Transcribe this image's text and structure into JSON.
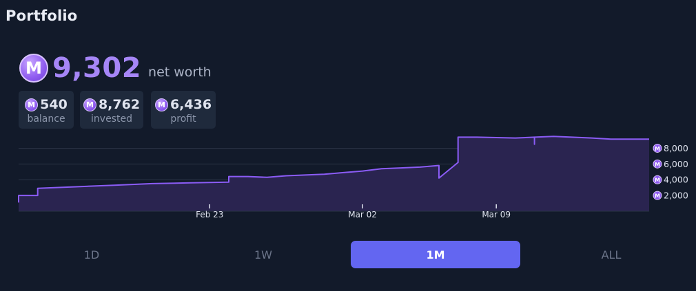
{
  "page": {
    "title": "Portfolio"
  },
  "net_worth": {
    "value": "9,302",
    "label": "net worth",
    "icon": "mana-coin-icon"
  },
  "stats": [
    {
      "value": "540",
      "label": "balance"
    },
    {
      "value": "8,762",
      "label": "invested"
    },
    {
      "value": "6,436",
      "label": "profit"
    }
  ],
  "currency_symbol": "M",
  "range_tabs": [
    {
      "label": "1D",
      "active": false
    },
    {
      "label": "1W",
      "active": false
    },
    {
      "label": "1M",
      "active": true
    },
    {
      "label": "ALL",
      "active": false
    }
  ],
  "colors": {
    "accent": "#6366f1",
    "line": "#8b5cf6",
    "area": "#2a2450",
    "background": "#121a2a",
    "net_worth": "#a686f7"
  },
  "chart_data": {
    "type": "area",
    "x_axis_type": "date",
    "x_ticks": [
      "Feb 23",
      "Mar 02",
      "Mar 09"
    ],
    "x_tick_dates": [
      "2024-02-23",
      "2024-03-02",
      "2024-03-09"
    ],
    "y_ticks": [
      "2,000",
      "4,000",
      "6,000",
      "8,000"
    ],
    "y_tick_values": [
      2000,
      4000,
      6000,
      8000
    ],
    "ylim": [
      0,
      9700
    ],
    "xlim": [
      "2024-02-13",
      "2024-03-17"
    ],
    "grid": true,
    "y_axis_position": "right",
    "series": [
      {
        "points": [
          [
            "2024-02-13",
            1100
          ],
          [
            "2024-02-13",
            2000
          ],
          [
            "2024-02-14",
            2000
          ],
          [
            "2024-02-14",
            2900
          ],
          [
            "2024-02-16",
            3100
          ],
          [
            "2024-02-18",
            3300
          ],
          [
            "2024-02-20",
            3500
          ],
          [
            "2024-02-22",
            3600
          ],
          [
            "2024-02-23",
            3650
          ],
          [
            "2024-02-24",
            3700
          ],
          [
            "2024-02-24",
            4400
          ],
          [
            "2024-02-25",
            4400
          ],
          [
            "2024-02-26",
            4300
          ],
          [
            "2024-02-27",
            4500
          ],
          [
            "2024-02-29",
            4700
          ],
          [
            "2024-03-01",
            4900
          ],
          [
            "2024-03-02",
            5100
          ],
          [
            "2024-03-03",
            5400
          ],
          [
            "2024-03-04",
            5500
          ],
          [
            "2024-03-05",
            5600
          ],
          [
            "2024-03-06",
            5800
          ],
          [
            "2024-03-06",
            4200
          ],
          [
            "2024-03-07",
            6200
          ],
          [
            "2024-03-07",
            9400
          ],
          [
            "2024-03-08",
            9400
          ],
          [
            "2024-03-09",
            9350
          ],
          [
            "2024-03-10",
            9300
          ],
          [
            "2024-03-11",
            9400
          ],
          [
            "2024-03-11",
            8500
          ],
          [
            "2024-03-11",
            9400
          ],
          [
            "2024-03-12",
            9500
          ],
          [
            "2024-03-14",
            9300
          ],
          [
            "2024-03-15",
            9150
          ],
          [
            "2024-03-17",
            9150
          ]
        ]
      }
    ]
  }
}
